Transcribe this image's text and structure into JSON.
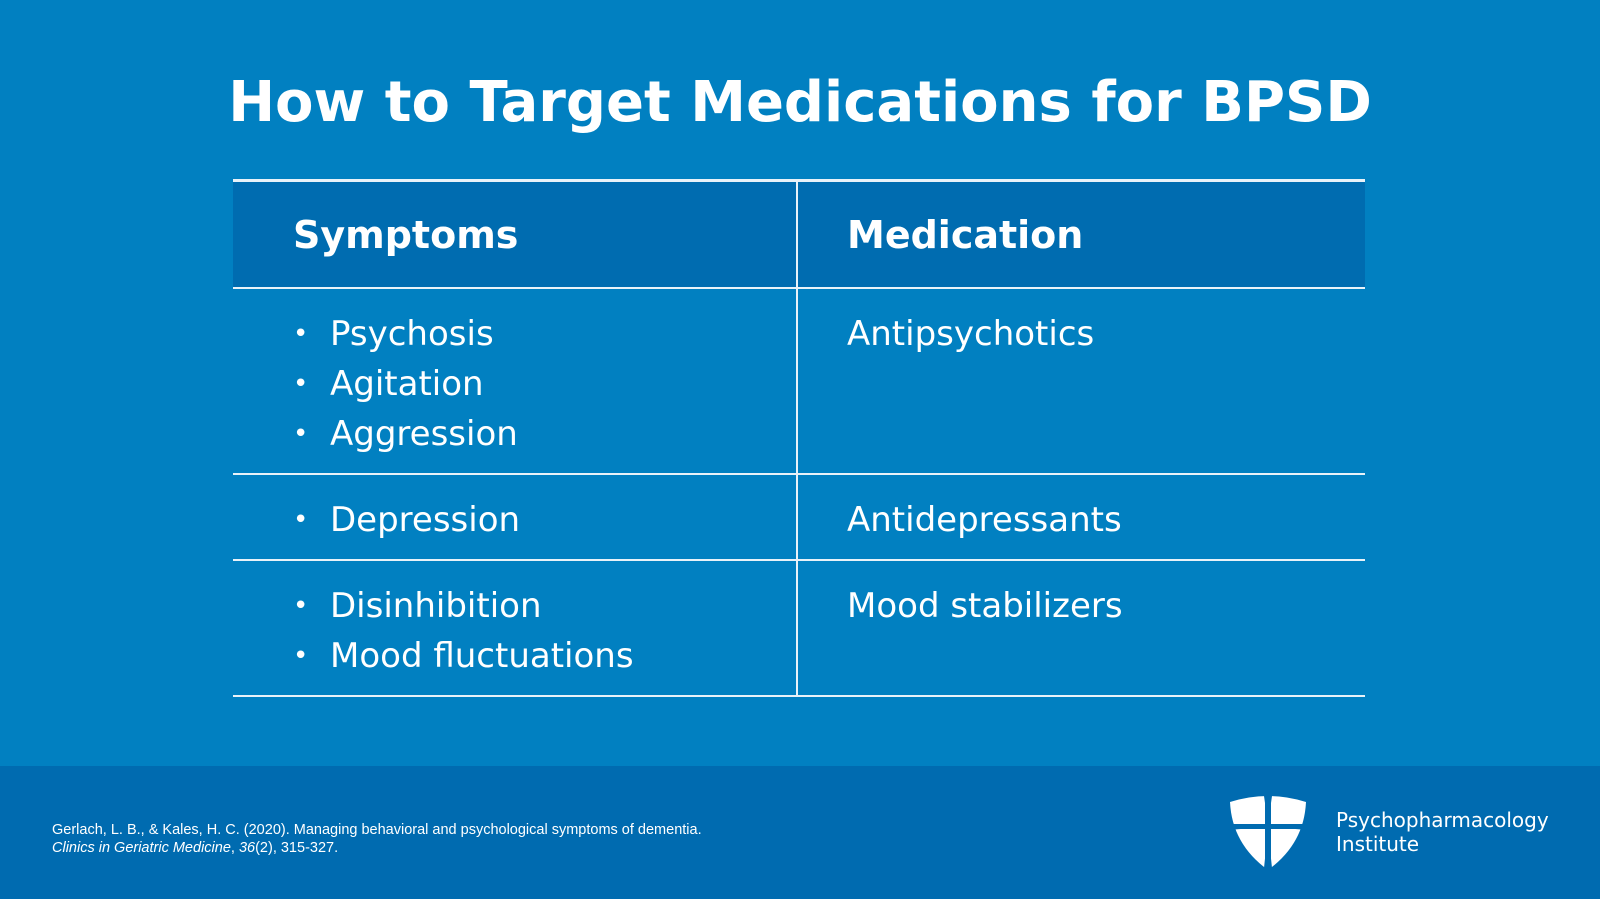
{
  "title": "How to Target Medications for BPSD",
  "table": {
    "headers": [
      "Symptoms",
      "Medication"
    ],
    "rows": [
      {
        "symptoms": [
          "Psychosis",
          "Agitation",
          "Aggression"
        ],
        "medication": "Antipsychotics"
      },
      {
        "symptoms": [
          "Depression"
        ],
        "medication": "Antidepressants"
      },
      {
        "symptoms": [
          "Disinhibition",
          "Mood fluctuations"
        ],
        "medication": "Mood stabilizers"
      }
    ]
  },
  "citation": {
    "line1": "Gerlach, L. B., & Kales, H. C. (2020). Managing behavioral and psychological symptoms of dementia.",
    "journal": "Clinics in Geriatric Medicine",
    "volume": "36",
    "rest": "(2), 315-327."
  },
  "brand": {
    "line1": "Psychopharmacology",
    "line2": "Institute",
    "logo_icon": "shield-cross-icon"
  },
  "colors": {
    "background": "#0180c1",
    "header": "#006cb0",
    "footer": "#006bb0",
    "text": "#ffffff"
  }
}
